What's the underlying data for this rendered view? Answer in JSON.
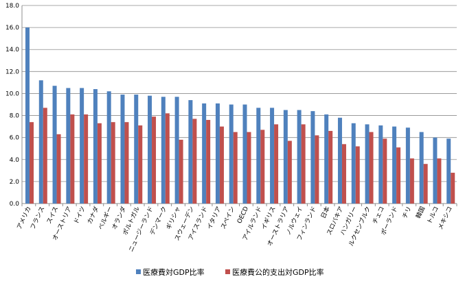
{
  "chart_data": {
    "type": "bar",
    "categories": [
      "アメリカ",
      "フランス",
      "スイス",
      "オーストリア",
      "ドイツ",
      "カナダ",
      "ベルギー",
      "オランダ",
      "ポルトガル",
      "ニュージーランド",
      "デンマーク",
      "ギリシャ",
      "スウェーデン",
      "アイスランド",
      "イタリア",
      "スペイン",
      "OECD",
      "アイルランド",
      "イギリス",
      "オーストラリア",
      "ノルウェイ",
      "フィンランド",
      "日本",
      "スロバキア",
      "ハンガリー",
      "ルクセンブルク",
      "チェコ",
      "ポーランド",
      "チリ",
      "韓国",
      "トルコ",
      "メキシコ"
    ],
    "series": [
      {
        "name": "医療費対GDP比率",
        "color": "#4f81bd",
        "values": [
          16.0,
          11.2,
          10.7,
          10.5,
          10.5,
          10.4,
          10.2,
          9.9,
          9.9,
          9.8,
          9.7,
          9.7,
          9.4,
          9.1,
          9.1,
          9.0,
          9.0,
          8.7,
          8.7,
          8.5,
          8.5,
          8.4,
          8.1,
          7.8,
          7.3,
          7.2,
          7.1,
          7.0,
          6.9,
          6.5,
          6.0,
          5.9
        ]
      },
      {
        "name": "医療費公的支出対GDP比率",
        "color": "#c0504d",
        "values": [
          7.4,
          8.7,
          6.3,
          8.1,
          8.1,
          7.3,
          7.4,
          7.4,
          7.1,
          7.9,
          8.2,
          5.8,
          7.7,
          7.6,
          7.0,
          6.5,
          6.5,
          6.7,
          7.2,
          5.7,
          7.2,
          6.2,
          6.6,
          5.4,
          5.2,
          6.5,
          5.9,
          5.1,
          4.1,
          3.6,
          4.1,
          2.8
        ]
      }
    ],
    "yticks": [
      "0.0",
      "2.0",
      "4.0",
      "6.0",
      "8.0",
      "10.0",
      "12.0",
      "14.0",
      "16.0",
      "18.0"
    ],
    "ylim": [
      0,
      18
    ],
    "grid": true,
    "legend_position": "bottom",
    "title": "",
    "xlabel": "",
    "ylabel": ""
  }
}
